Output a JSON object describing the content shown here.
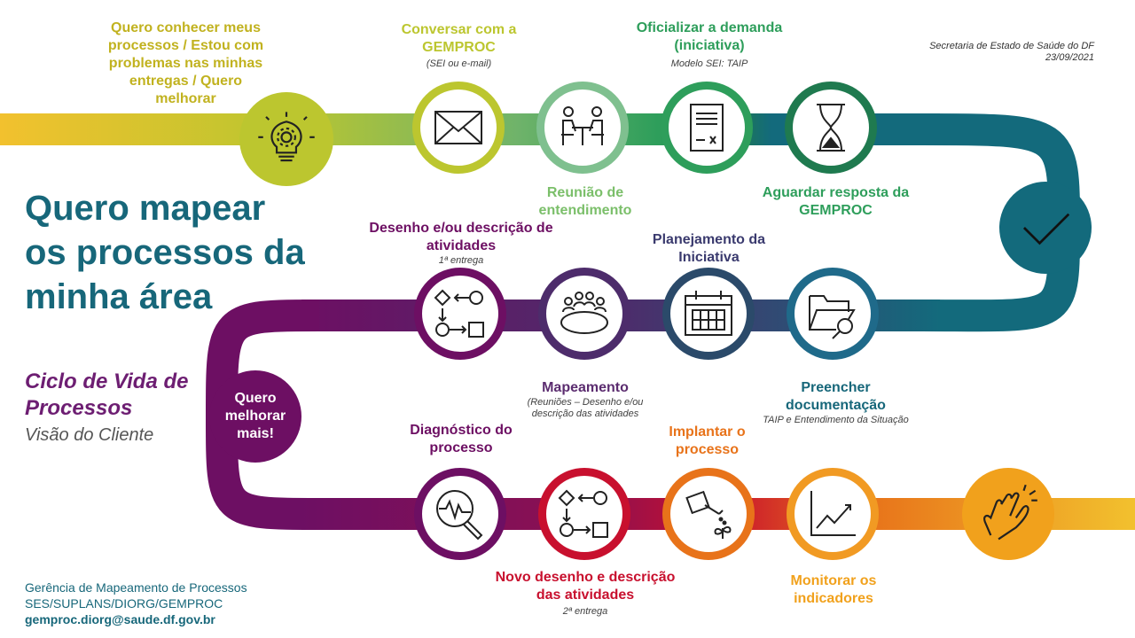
{
  "header": {
    "org": "Secretaria de Estado de Saúde do DF",
    "date": "23/09/2021"
  },
  "title": "Quero mapear os processos da minha área",
  "cycle_title": "Ciclo de Vida de Processos",
  "view": "Visão do Cliente",
  "start": {
    "label": "Quero conhecer meus processos / Estou com problemas nas minhas entregas / Quero melhorar"
  },
  "steps": {
    "conversar": {
      "label": "Conversar com a GEMPROC",
      "sub": "(SEI ou e-mail)"
    },
    "reuniao": {
      "label": "Reunião de entendimento"
    },
    "oficializar": {
      "label": "Oficializar a demanda (iniciativa)",
      "sub": "Modelo SEI: TAIP"
    },
    "aguardar": {
      "label": "Aguardar resposta da GEMPROC"
    },
    "preencher": {
      "label": "Preencher documentação",
      "sub": "TAIP e Entendimento da Situação"
    },
    "planejamento": {
      "label": "Planejamento da Iniciativa"
    },
    "mapeamento": {
      "label": "Mapeamento",
      "sub": "(Reuniões – Desenho e/ou descrição das atividades"
    },
    "desenho": {
      "label": "Desenho e/ou descrição de atividades",
      "sub": "1ª entrega"
    },
    "quero_mais": {
      "label": "Quero melhorar mais!"
    },
    "diagnostico": {
      "label": "Diagnóstico do processo"
    },
    "novo_desenho": {
      "label": "Novo desenho e descrição das atividades",
      "sub": "2ª entrega"
    },
    "implantar": {
      "label": "Implantar o processo"
    },
    "monitorar": {
      "label": "Monitorar os indicadores"
    }
  },
  "footer": {
    "line1": "Gerência de Mapeamento de Processos",
    "line2": "SES/SUPLANS/DIORG/GEMPROC",
    "email": "gemproc.diorg@saude.df.gov.br"
  },
  "colors": {
    "yellow": "#f2c12e",
    "lime": "#bcc62f",
    "green": "#2e9e5b",
    "teal": "#136a7c",
    "blue": "#2f5b7c",
    "purple": "#6d0f63",
    "red": "#c8102e",
    "orange": "#e8731a"
  },
  "icons": [
    "lightbulb-gear-icon",
    "envelope-icon",
    "meeting-icon",
    "document-sign-icon",
    "hourglass-icon",
    "checkmark-icon",
    "folder-search-icon",
    "calendar-icon",
    "round-table-icon",
    "flowchart-icon",
    "diagnosis-magnifier-icon",
    "watering-plant-icon",
    "chart-growth-icon",
    "clapping-hands-icon"
  ]
}
